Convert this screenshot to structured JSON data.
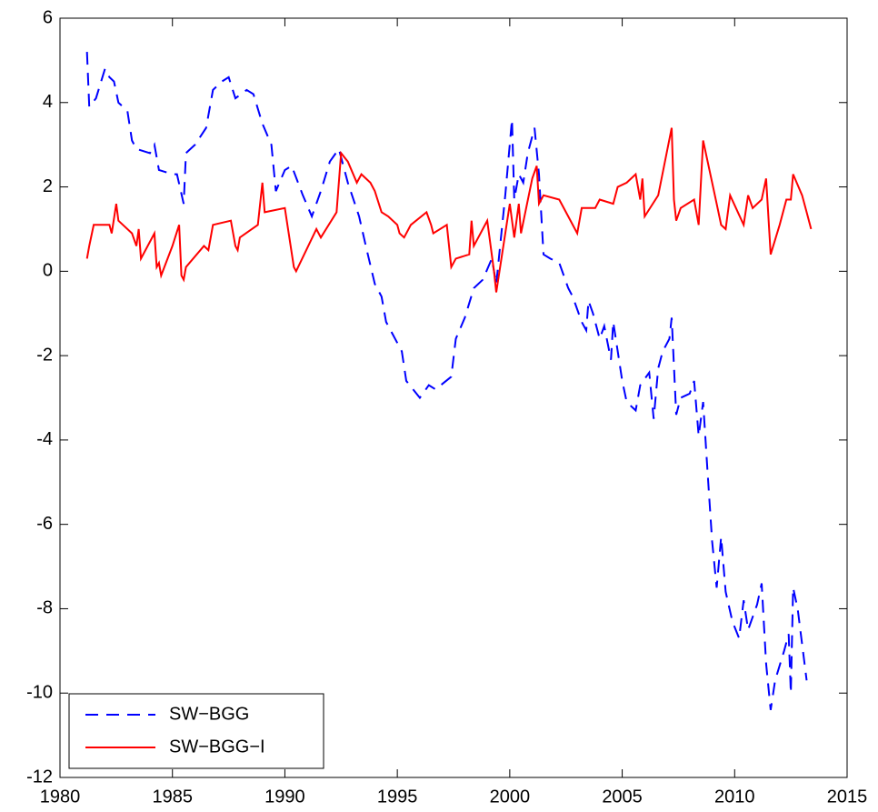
{
  "chart_data": {
    "type": "line",
    "xlim": [
      1980,
      2015
    ],
    "xticks": [
      1980,
      1985,
      1990,
      1995,
      2000,
      2005,
      2010,
      2015
    ],
    "ylim": [
      -12,
      6
    ],
    "yticks": [
      -12,
      -10,
      -8,
      -6,
      -4,
      -2,
      0,
      2,
      4,
      6
    ],
    "legend": "lower left",
    "series": [
      {
        "name": "SW−BGG",
        "color": "#0000ff",
        "style": "dashed",
        "x": [
          1981.2,
          1981.3,
          1981.6,
          1982.0,
          1982.2,
          1982.4,
          1982.6,
          1983.0,
          1983.2,
          1983.4,
          1984.0,
          1984.2,
          1984.4,
          1985.0,
          1985.2,
          1985.5,
          1985.6,
          1986.0,
          1986.5,
          1986.8,
          1987.2,
          1987.5,
          1987.8,
          1988.3,
          1988.6,
          1989.0,
          1989.4,
          1989.6,
          1990.0,
          1990.3,
          1990.8,
          1991.2,
          1991.6,
          1992.0,
          1992.4,
          1992.8,
          1993.3,
          1993.6,
          1994.0,
          1994.3,
          1994.5,
          1994.8,
          1995.2,
          1995.4,
          1996.0,
          1996.4,
          1996.7,
          1997.4,
          1997.6,
          1998.0,
          1998.4,
          1998.8,
          1999.2,
          1999.4,
          1999.8,
          2000.1,
          2000.2,
          2000.4,
          2000.6,
          2000.8,
          2001.1,
          2001.3,
          2001.5,
          2001.8,
          2002.2,
          2002.6,
          2002.8,
          2003.2,
          2003.4,
          2003.5,
          2003.7,
          2004.0,
          2004.2,
          2004.5,
          2004.6,
          2005.0,
          2005.2,
          2005.6,
          2005.8,
          2006.2,
          2006.4,
          2006.6,
          2006.8,
          2007.1,
          2007.2,
          2007.4,
          2007.6,
          2008.0,
          2008.2,
          2008.4,
          2008.6,
          2008.8,
          2009.0,
          2009.2,
          2009.4,
          2009.6,
          2009.9,
          2010.2,
          2010.4,
          2010.6,
          2011.0,
          2011.2,
          2011.4,
          2011.6,
          2011.8,
          2012.2,
          2012.4,
          2012.5,
          2012.6,
          2012.8,
          2013.2
        ],
        "values": [
          5.2,
          3.9,
          4.1,
          4.8,
          4.6,
          4.5,
          4.0,
          3.8,
          3.1,
          2.9,
          2.8,
          3.0,
          2.4,
          2.3,
          2.3,
          1.6,
          2.8,
          3.0,
          3.4,
          4.3,
          4.5,
          4.6,
          4.1,
          4.3,
          4.2,
          3.5,
          3.0,
          1.9,
          2.4,
          2.5,
          1.8,
          1.3,
          1.9,
          2.6,
          2.9,
          2.1,
          1.3,
          0.6,
          -0.3,
          -0.6,
          -1.2,
          -1.5,
          -1.9,
          -2.6,
          -3.0,
          -2.7,
          -2.8,
          -2.5,
          -1.6,
          -1.1,
          -0.4,
          -0.2,
          0.3,
          -0.3,
          1.8,
          3.6,
          1.7,
          2.3,
          2.1,
          2.8,
          3.4,
          2.3,
          0.4,
          0.3,
          0.2,
          -0.4,
          -0.6,
          -1.2,
          -1.4,
          -0.7,
          -1.0,
          -1.6,
          -1.3,
          -2.1,
          -1.2,
          -2.6,
          -3.1,
          -3.3,
          -2.7,
          -2.4,
          -3.5,
          -2.3,
          -1.9,
          -1.6,
          -1.1,
          -3.4,
          -3.0,
          -2.9,
          -2.6,
          -3.9,
          -3.1,
          -4.8,
          -6.4,
          -7.5,
          -6.3,
          -7.6,
          -8.3,
          -8.7,
          -7.8,
          -8.5,
          -7.9,
          -7.4,
          -9.3,
          -10.4,
          -9.7,
          -9.0,
          -8.6,
          -10.0,
          -7.5,
          -8.0,
          -9.7
        ]
      },
      {
        "name": "SW−BGG−I",
        "color": "#ff0000",
        "style": "solid",
        "x": [
          1981.2,
          1981.3,
          1981.5,
          1982.2,
          1982.3,
          1982.5,
          1982.6,
          1983.2,
          1983.4,
          1983.5,
          1983.6,
          1984.2,
          1984.3,
          1984.4,
          1984.5,
          1985.0,
          1985.3,
          1985.4,
          1985.5,
          1985.6,
          1986.4,
          1986.6,
          1986.8,
          1987.6,
          1987.8,
          1987.9,
          1988.0,
          1988.8,
          1989.0,
          1989.1,
          1990.0,
          1990.4,
          1990.5,
          1991.4,
          1991.6,
          1992.3,
          1992.5,
          1992.8,
          1993.2,
          1993.4,
          1993.8,
          1994.0,
          1994.3,
          1994.6,
          1995.0,
          1995.1,
          1995.3,
          1995.6,
          1996.3,
          1996.5,
          1996.6,
          1997.2,
          1997.4,
          1997.6,
          1998.2,
          1998.3,
          1998.4,
          1998.8,
          1999.0,
          1999.3,
          1999.4,
          2000.0,
          2000.2,
          2000.4,
          2000.5,
          2001.0,
          2001.2,
          2001.3,
          2001.5,
          2002.2,
          2002.6,
          2003.0,
          2003.2,
          2003.8,
          2004.0,
          2004.6,
          2004.8,
          2005.2,
          2005.6,
          2005.8,
          2005.9,
          2006.0,
          2006.6,
          2007.2,
          2007.3,
          2007.4,
          2007.6,
          2008.2,
          2008.4,
          2008.6,
          2009.2,
          2009.4,
          2009.6,
          2009.8,
          2010.4,
          2010.6,
          2010.8,
          2011.2,
          2011.4,
          2011.6,
          2012.0,
          2012.3,
          2012.5,
          2012.6,
          2013.0,
          2013.2,
          2013.4
        ],
        "values": [
          0.3,
          0.6,
          1.1,
          1.1,
          0.9,
          1.6,
          1.2,
          0.9,
          0.6,
          1.0,
          0.3,
          0.9,
          0.1,
          0.2,
          -0.1,
          0.6,
          1.1,
          -0.1,
          -0.2,
          0.1,
          0.6,
          0.5,
          1.1,
          1.2,
          0.6,
          0.5,
          0.8,
          1.1,
          2.1,
          1.4,
          1.5,
          0.1,
          0.0,
          1.0,
          0.8,
          1.4,
          2.8,
          2.6,
          2.1,
          2.3,
          2.1,
          1.9,
          1.4,
          1.3,
          1.1,
          0.9,
          0.8,
          1.1,
          1.4,
          1.1,
          0.9,
          1.1,
          0.1,
          0.3,
          0.4,
          1.2,
          0.6,
          1.0,
          1.2,
          0.0,
          -0.5,
          1.6,
          0.8,
          1.6,
          0.9,
          2.2,
          2.5,
          1.6,
          1.8,
          1.7,
          1.3,
          0.9,
          1.5,
          1.5,
          1.7,
          1.6,
          2.0,
          2.1,
          2.3,
          1.7,
          2.2,
          1.3,
          1.8,
          3.4,
          1.7,
          1.2,
          1.5,
          1.7,
          1.1,
          3.1,
          1.6,
          1.1,
          1.0,
          1.8,
          1.1,
          1.8,
          1.5,
          1.7,
          2.2,
          0.4,
          1.1,
          1.7,
          1.7,
          2.3,
          1.8,
          1.4,
          1.0
        ]
      }
    ]
  }
}
